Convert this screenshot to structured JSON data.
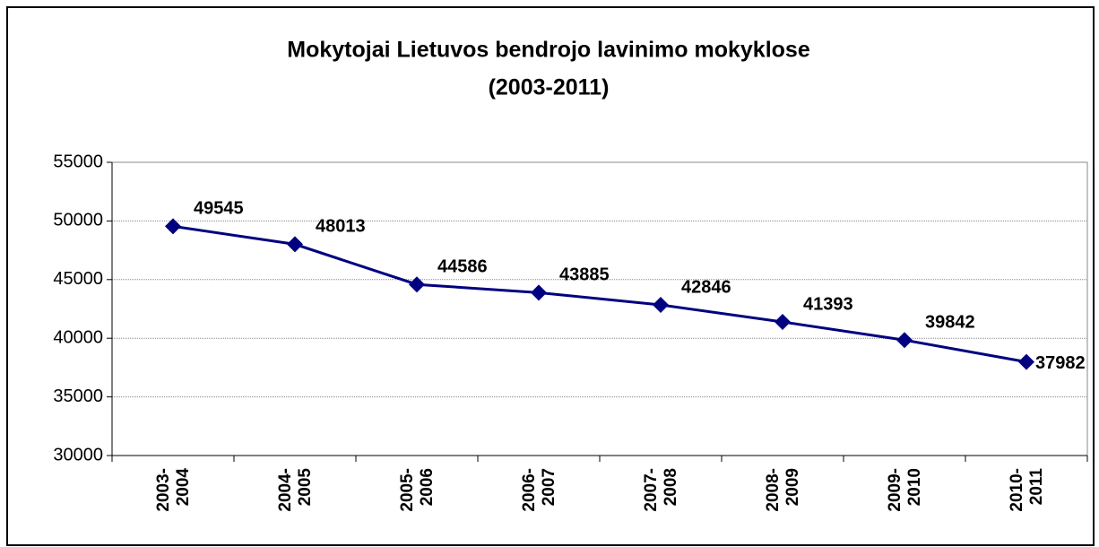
{
  "chart_data": {
    "type": "line",
    "title": [
      "Mokytojai Lietuvos bendrojo lavinimo mokyklose",
      "(2003-2011)"
    ],
    "categories": [
      "2003-2004",
      "2004-2005",
      "2005-2006",
      "2006-2007",
      "2007-2008",
      "2008-2009",
      "2009-2010",
      "2010-2011"
    ],
    "series": [
      {
        "name": "Mokytojai",
        "color": "#000080",
        "values": [
          49545,
          48013,
          44586,
          43885,
          42846,
          41393,
          39842,
          37982
        ]
      }
    ],
    "ylim": [
      30000,
      55000
    ],
    "yticks": [
      30000,
      35000,
      40000,
      45000,
      50000,
      55000
    ],
    "grid": true
  }
}
